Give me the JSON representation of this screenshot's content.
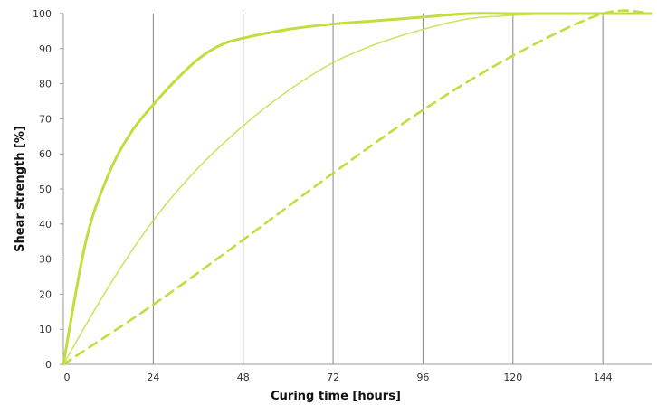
{
  "chart_data": {
    "type": "line",
    "title": "",
    "xlabel": "Curing time [hours]",
    "ylabel": "Shear strength [%]",
    "xlim": [
      0,
      157
    ],
    "ylim": [
      0,
      100
    ],
    "x_ticks": [
      0,
      24,
      48,
      72,
      96,
      120,
      144
    ],
    "y_ticks": [
      0,
      10,
      20,
      30,
      40,
      50,
      60,
      70,
      80,
      90,
      100
    ],
    "grid": "vertical",
    "legend": "none",
    "colors": {
      "series": "#c3dc3f",
      "grid": "#888888",
      "axis": "#9a9a9a"
    },
    "series": [
      {
        "style": "solid-thick",
        "x": [
          0,
          6,
          12,
          18,
          24,
          30,
          36,
          42,
          48,
          60,
          72,
          84,
          96,
          108,
          120,
          132,
          144,
          157
        ],
        "y": [
          0,
          35,
          54,
          66,
          74,
          81,
          87,
          91,
          93,
          95.5,
          97,
          98,
          99,
          100,
          100,
          100,
          100,
          100
        ]
      },
      {
        "style": "solid-thin",
        "x": [
          0,
          12,
          24,
          36,
          48,
          60,
          72,
          84,
          96,
          108,
          120,
          132,
          144,
          157
        ],
        "y": [
          0,
          22,
          41,
          56,
          68,
          78,
          86,
          91.5,
          95.5,
          98.5,
          99.5,
          100,
          100,
          100
        ]
      },
      {
        "style": "dashed",
        "x": [
          0,
          24,
          48,
          72,
          96,
          120,
          144,
          157
        ],
        "y": [
          0,
          17,
          35.5,
          54.5,
          72.5,
          88,
          100,
          100
        ]
      }
    ]
  }
}
